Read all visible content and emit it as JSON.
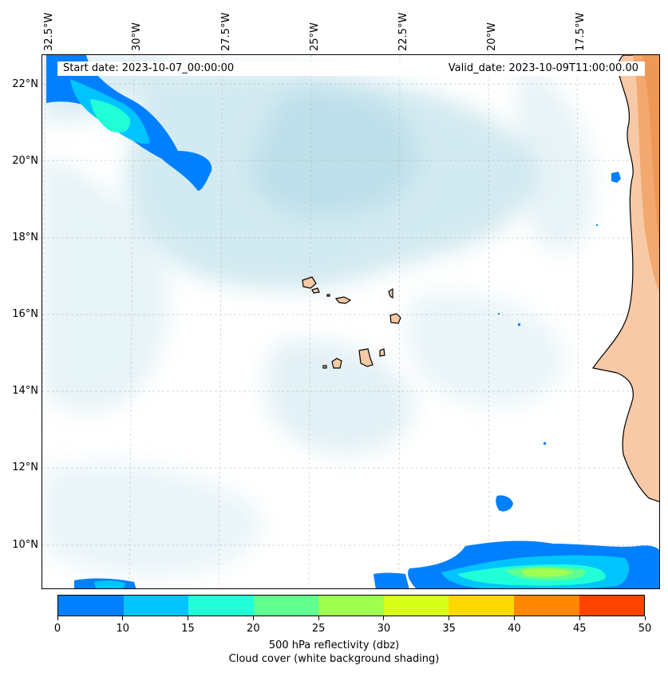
{
  "map": {
    "lon_labels": [
      "32.5°W",
      "30°W",
      "27.5°W",
      "25°W",
      "22.5°W",
      "20°W",
      "17.5°W"
    ],
    "lat_labels": [
      "22°N",
      "20°N",
      "18°N",
      "16°N",
      "14°N",
      "12°N",
      "10°N"
    ],
    "start_date": "Start date: 2023-10-07_00:00:00",
    "valid_date": "Valid_date: 2023-10-09T11:00:00.00",
    "land_color": "#f7c9a6",
    "coast_color": "#000000",
    "cloud_color": "#add8e6"
  },
  "colorbar": {
    "ticks": [
      "0",
      "10",
      "15",
      "20",
      "25",
      "30",
      "35",
      "40",
      "45",
      "50"
    ],
    "colors": [
      "#0080ff",
      "#00c4ff",
      "#20ffd8",
      "#60ff90",
      "#a0ff50",
      "#d8ff18",
      "#ffd800",
      "#ff8800",
      "#ff4400"
    ],
    "label_line1": "500 hPa reflectivity (dbz)",
    "label_line2": "Cloud cover (white background shading)"
  }
}
